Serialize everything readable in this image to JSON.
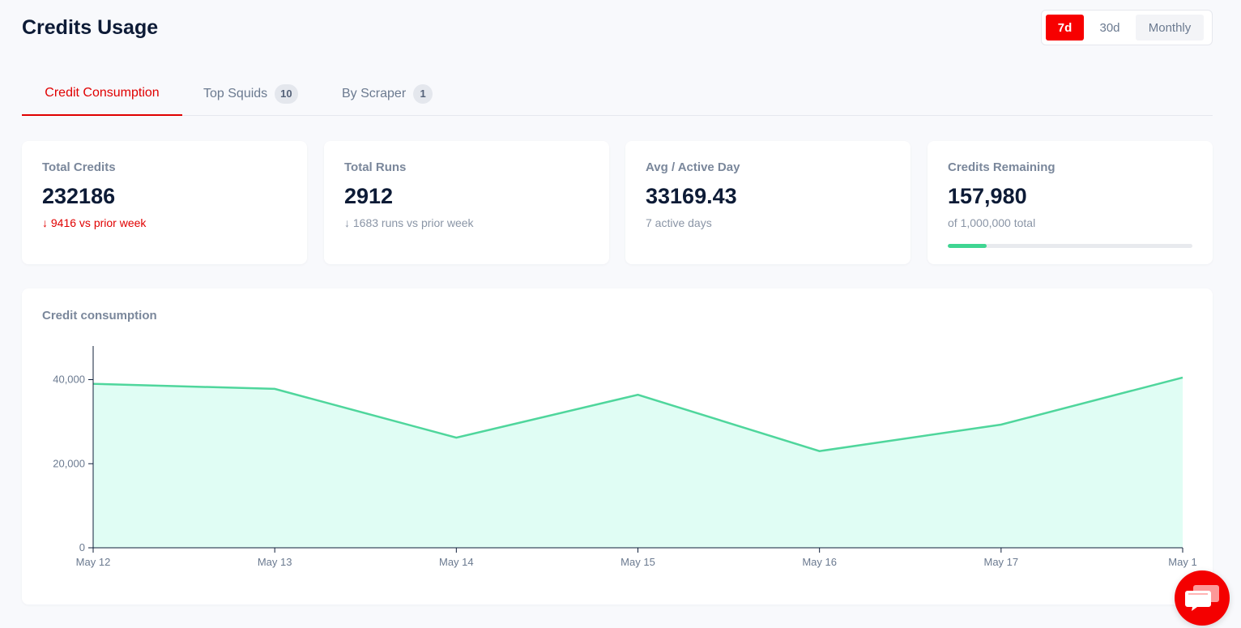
{
  "header": {
    "title": "Credits Usage"
  },
  "range": {
    "options": [
      "7d",
      "30d",
      "Monthly"
    ],
    "selected": "7d"
  },
  "tabs": [
    {
      "label": "Credit Consumption",
      "active": true
    },
    {
      "label": "Top Squids",
      "badge": "10"
    },
    {
      "label": "By Scraper",
      "badge": "1"
    }
  ],
  "stats": [
    {
      "label": "Total Credits",
      "value": "232186",
      "sub": "↓ 9416 vs prior week",
      "trend": "down"
    },
    {
      "label": "Total Runs",
      "value": "2912",
      "sub": "↓ 1683 runs vs prior week"
    },
    {
      "label": "Avg / Active Day",
      "value": "33169.43",
      "sub": "7 active days"
    },
    {
      "label": "Credits Remaining",
      "value": "157,980",
      "sub": "of 1,000,000 total",
      "progress": 0.158
    }
  ],
  "colors": {
    "accent": "#f70000",
    "series": "#4fd69c",
    "fill": "#e0fdf4",
    "progress": "#3fd592"
  },
  "chart_title": "Credit consumption",
  "chat_fab": {
    "icon": "chat-bubble-icon"
  },
  "chart_data": {
    "type": "area",
    "x": [
      "May 12",
      "May 13",
      "May 14",
      "May 15",
      "May 16",
      "May 17",
      "May 1"
    ],
    "series": [
      {
        "values": [
          39000,
          37800,
          26200,
          36400,
          23000,
          29300,
          40500
        ]
      }
    ],
    "yticks": [
      "0",
      "20,000",
      "40,000"
    ],
    "ylim": [
      0,
      48000
    ],
    "grid": false
  }
}
